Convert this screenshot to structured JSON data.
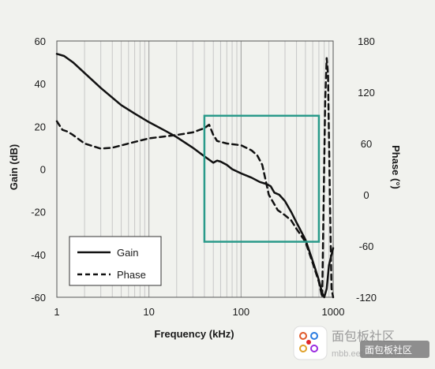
{
  "chart_data": {
    "type": "line",
    "xlabel": "Frequency (kHz)",
    "ylabel": "Gain (dB)",
    "y2label": "Phase (°)",
    "xscale": "log",
    "xlim": [
      1,
      1000
    ],
    "ylim": [
      -60,
      60
    ],
    "y2lim": [
      -120,
      180
    ],
    "x_ticks": [
      "1",
      "10",
      "100",
      "1000"
    ],
    "y_ticks": [
      "60",
      "40",
      "20",
      "0",
      "-20",
      "-40",
      "-60"
    ],
    "y2_ticks": [
      "180",
      "120",
      "60",
      "0",
      "-60",
      "-120"
    ],
    "grid": "vertical minor and major lines",
    "legend_position": "bottom-left",
    "series": [
      {
        "name": "Gain",
        "axis": "left",
        "style": "solid",
        "color": "#111111",
        "points": [
          [
            1,
            54
          ],
          [
            1.2,
            53
          ],
          [
            1.5,
            50
          ],
          [
            2,
            45
          ],
          [
            3,
            38
          ],
          [
            5,
            30
          ],
          [
            7,
            26
          ],
          [
            10,
            22
          ],
          [
            15,
            18
          ],
          [
            20,
            15
          ],
          [
            30,
            10
          ],
          [
            40,
            6
          ],
          [
            50,
            3
          ],
          [
            55,
            4
          ],
          [
            60,
            3.5
          ],
          [
            70,
            2
          ],
          [
            80,
            0
          ],
          [
            100,
            -2
          ],
          [
            130,
            -4
          ],
          [
            160,
            -6
          ],
          [
            190,
            -7
          ],
          [
            210,
            -8
          ],
          [
            230,
            -11
          ],
          [
            260,
            -12
          ],
          [
            300,
            -15
          ],
          [
            350,
            -20
          ],
          [
            400,
            -25
          ],
          [
            500,
            -33
          ],
          [
            600,
            -43
          ],
          [
            700,
            -52
          ],
          [
            760,
            -58
          ],
          [
            800,
            -60
          ],
          [
            850,
            -56
          ],
          [
            900,
            -45
          ],
          [
            1000,
            -37
          ]
        ]
      },
      {
        "name": "Phase",
        "axis": "right",
        "style": "dashed",
        "color": "#111111",
        "points": [
          [
            1,
            86
          ],
          [
            1.15,
            76
          ],
          [
            1.3,
            74
          ],
          [
            1.5,
            70
          ],
          [
            2,
            60
          ],
          [
            3,
            54
          ],
          [
            4,
            55
          ],
          [
            6,
            60
          ],
          [
            10,
            66
          ],
          [
            20,
            70
          ],
          [
            30,
            73
          ],
          [
            40,
            78
          ],
          [
            45,
            82
          ],
          [
            50,
            70
          ],
          [
            55,
            63
          ],
          [
            70,
            60
          ],
          [
            100,
            58
          ],
          [
            130,
            52
          ],
          [
            150,
            46
          ],
          [
            170,
            35
          ],
          [
            200,
            0
          ],
          [
            250,
            -18
          ],
          [
            300,
            -24
          ],
          [
            350,
            -30
          ],
          [
            400,
            -40
          ],
          [
            500,
            -55
          ],
          [
            600,
            -80
          ],
          [
            700,
            -102
          ],
          [
            760,
            -120
          ],
          [
            790,
            0
          ],
          [
            820,
            110
          ],
          [
            850,
            160
          ],
          [
            880,
            140
          ],
          [
            920,
            0
          ],
          [
            960,
            -110
          ],
          [
            1000,
            -120
          ]
        ]
      }
    ],
    "annotations": [
      {
        "type": "rectangle",
        "color": "#2a9a8a",
        "x_range": [
          40,
          700
        ],
        "y_range": [
          -34,
          25
        ],
        "axis": "left"
      }
    ]
  },
  "watermark": {
    "brand": "面包板社区",
    "site": "mbb.eet-china.com",
    "badge": "面包板社区"
  }
}
